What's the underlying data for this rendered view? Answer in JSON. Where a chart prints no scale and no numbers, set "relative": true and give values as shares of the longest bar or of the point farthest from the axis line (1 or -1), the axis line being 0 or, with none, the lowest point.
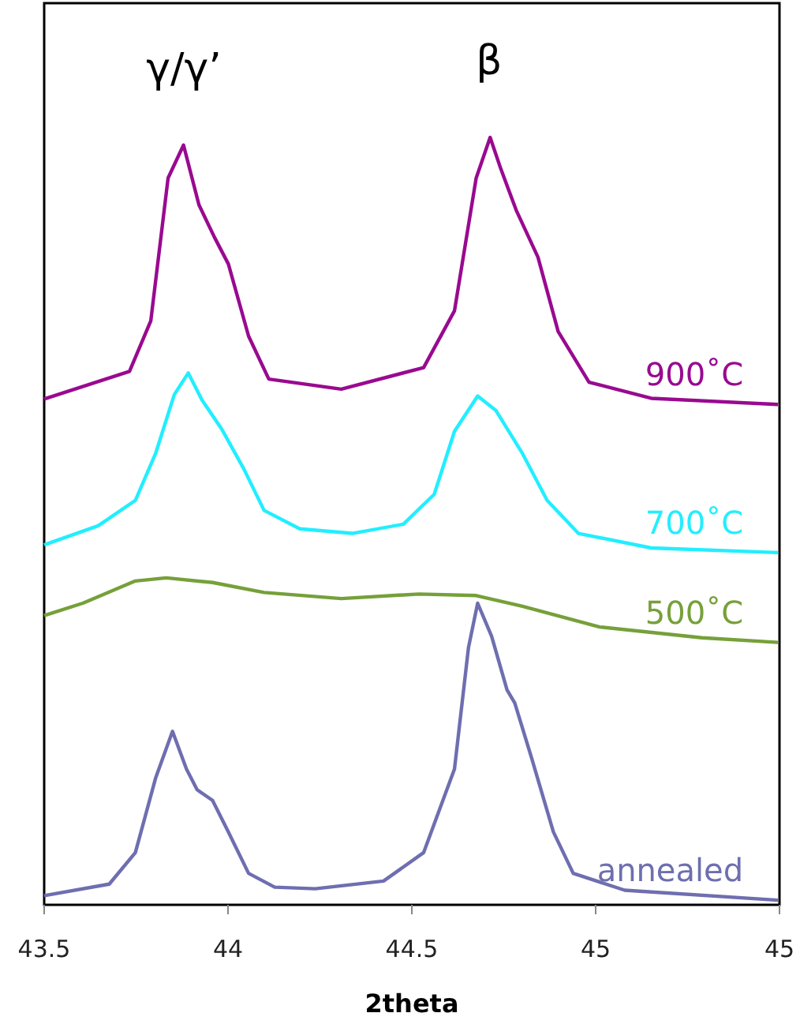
{
  "chart_data": {
    "type": "line",
    "relative": true,
    "xlabel": "2theta",
    "xlim": [
      43.5,
      45.5
    ],
    "xticks": [
      43.5,
      44,
      44.5,
      45,
      {
        "value": 45.5,
        "label": "45"
      }
    ],
    "grid": false,
    "marker": "none",
    "line_style": "solid",
    "annotations": [
      {
        "text": "γ/γ’",
        "x": 43.88,
        "y": 0.99
      },
      {
        "text": "β",
        "x": 44.71,
        "y": 1.0
      }
    ],
    "series": [
      {
        "name": "900˚C",
        "color": "#990a90",
        "x": [
          43.5,
          43.732,
          43.79,
          43.837,
          43.879,
          43.921,
          43.963,
          44.001,
          44.056,
          44.111,
          44.308,
          44.532,
          44.616,
          44.675,
          44.713,
          44.742,
          44.784,
          44.843,
          44.898,
          44.982,
          45.151,
          45.496
        ],
        "values": [
          0.659,
          0.695,
          0.761,
          0.947,
          0.99,
          0.912,
          0.87,
          0.835,
          0.741,
          0.685,
          0.672,
          0.7,
          0.774,
          0.947,
          1.0,
          0.959,
          0.905,
          0.844,
          0.747,
          0.681,
          0.66,
          0.652
        ]
      },
      {
        "name": "700˚C",
        "color": "#22eeff",
        "x": [
          43.5,
          43.647,
          43.748,
          43.803,
          43.854,
          43.892,
          43.929,
          43.984,
          44.043,
          44.098,
          44.195,
          44.338,
          44.477,
          44.561,
          44.616,
          44.679,
          44.729,
          44.801,
          44.868,
          44.953,
          45.151,
          45.496
        ],
        "values": [
          0.469,
          0.494,
          0.527,
          0.588,
          0.665,
          0.693,
          0.658,
          0.619,
          0.568,
          0.514,
          0.49,
          0.484,
          0.496,
          0.535,
          0.617,
          0.663,
          0.644,
          0.588,
          0.527,
          0.484,
          0.465,
          0.459
        ]
      },
      {
        "name": "500˚C",
        "color": "#76a03a",
        "x": [
          43.5,
          43.605,
          43.748,
          43.832,
          43.958,
          44.098,
          44.308,
          44.519,
          44.675,
          44.801,
          45.011,
          45.289,
          45.496
        ],
        "values": [
          0.377,
          0.393,
          0.422,
          0.426,
          0.42,
          0.407,
          0.399,
          0.405,
          0.403,
          0.389,
          0.362,
          0.348,
          0.342
        ]
      },
      {
        "name": "annealed",
        "color": "#6e6eb0",
        "x": [
          43.5,
          43.677,
          43.748,
          43.803,
          43.849,
          43.887,
          43.916,
          43.958,
          44.001,
          44.056,
          44.127,
          44.237,
          44.423,
          44.532,
          44.616,
          44.654,
          44.679,
          44.717,
          44.759,
          44.78,
          44.826,
          44.885,
          44.939,
          45.079,
          45.496
        ],
        "values": [
          0.012,
          0.027,
          0.068,
          0.165,
          0.226,
          0.177,
          0.15,
          0.136,
          0.095,
          0.041,
          0.023,
          0.021,
          0.031,
          0.068,
          0.177,
          0.335,
          0.393,
          0.35,
          0.28,
          0.263,
          0.191,
          0.095,
          0.041,
          0.019,
          0.006
        ]
      }
    ]
  }
}
